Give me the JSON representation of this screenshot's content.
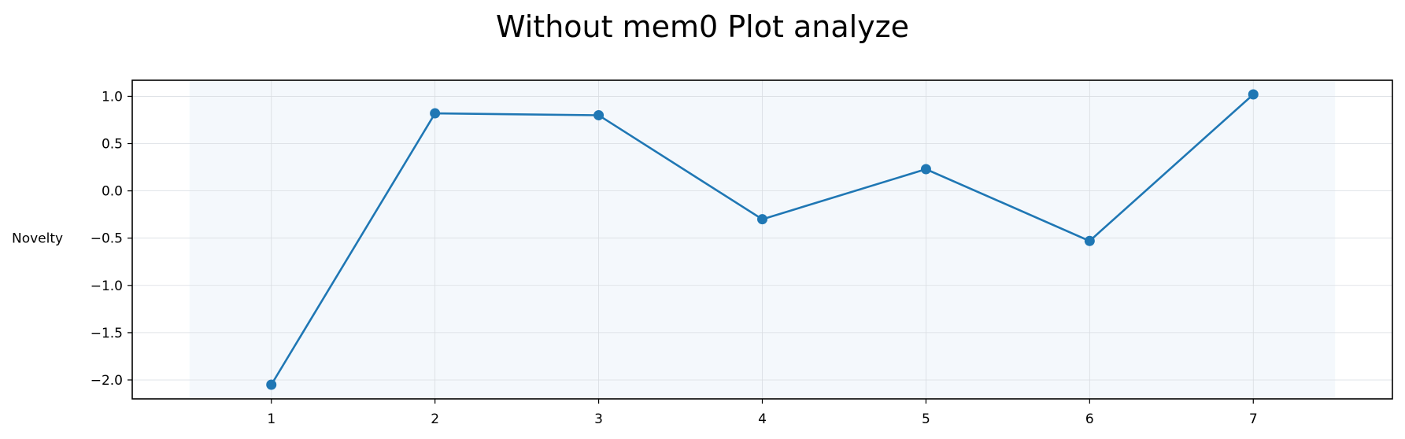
{
  "chart_data": {
    "type": "line",
    "title": "Without mem0 Plot analyze",
    "xlabel": "",
    "ylabel": "Novelty",
    "x": [
      1,
      2,
      3,
      4,
      5,
      6,
      7
    ],
    "series": [
      {
        "values": [
          -2.05,
          0.82,
          0.8,
          -0.3,
          0.23,
          -0.53,
          1.02
        ]
      }
    ],
    "xticks": [
      "1",
      "2",
      "3",
      "4",
      "5",
      "6",
      "7"
    ],
    "yticks": [
      "1.0",
      "0.5",
      "0.0",
      "−0.5",
      "−1.0",
      "−1.5",
      "−2.0"
    ],
    "ytick_values": [
      1.0,
      0.5,
      0.0,
      -0.5,
      -1.0,
      -1.5,
      -2.0
    ],
    "xlim": [
      0.15,
      7.85
    ],
    "ylim": [
      -2.2,
      1.17
    ],
    "shaded_span_x": [
      0.5,
      7.5
    ],
    "grid": true,
    "colors": {
      "line": "#1f77b4",
      "shade": "#f4f8fc",
      "grid": "#d9dde2",
      "axis": "#000000"
    }
  }
}
